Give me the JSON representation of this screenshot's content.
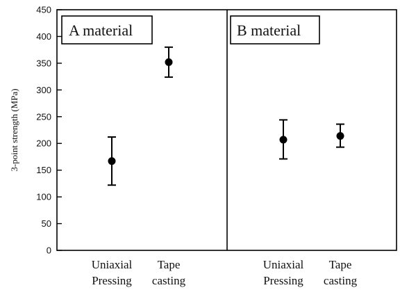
{
  "chart_data": {
    "type": "scatter",
    "ylabel": "3-point strength (MPa)",
    "ylim": [
      0,
      450
    ],
    "yticks": [
      0,
      50,
      100,
      150,
      200,
      250,
      300,
      350,
      400,
      450
    ],
    "grid": false,
    "panels": [
      {
        "title": "A material",
        "categories": [
          [
            "Uniaxial",
            "Pressing"
          ],
          [
            "Tape",
            "casting"
          ]
        ],
        "points": [
          {
            "category": "Uniaxial Pressing",
            "y": 167,
            "err_low": 122,
            "err_high": 212
          },
          {
            "category": "Tape casting",
            "y": 352,
            "err_low": 324,
            "err_high": 380
          }
        ]
      },
      {
        "title": "B material",
        "categories": [
          [
            "Uniaxial",
            "Pressing"
          ],
          [
            "Tape",
            "casting"
          ]
        ],
        "points": [
          {
            "category": "Uniaxial Pressing",
            "y": 207,
            "err_low": 171,
            "err_high": 244
          },
          {
            "category": "Tape casting",
            "y": 214,
            "err_low": 193,
            "err_high": 236
          }
        ]
      }
    ]
  }
}
